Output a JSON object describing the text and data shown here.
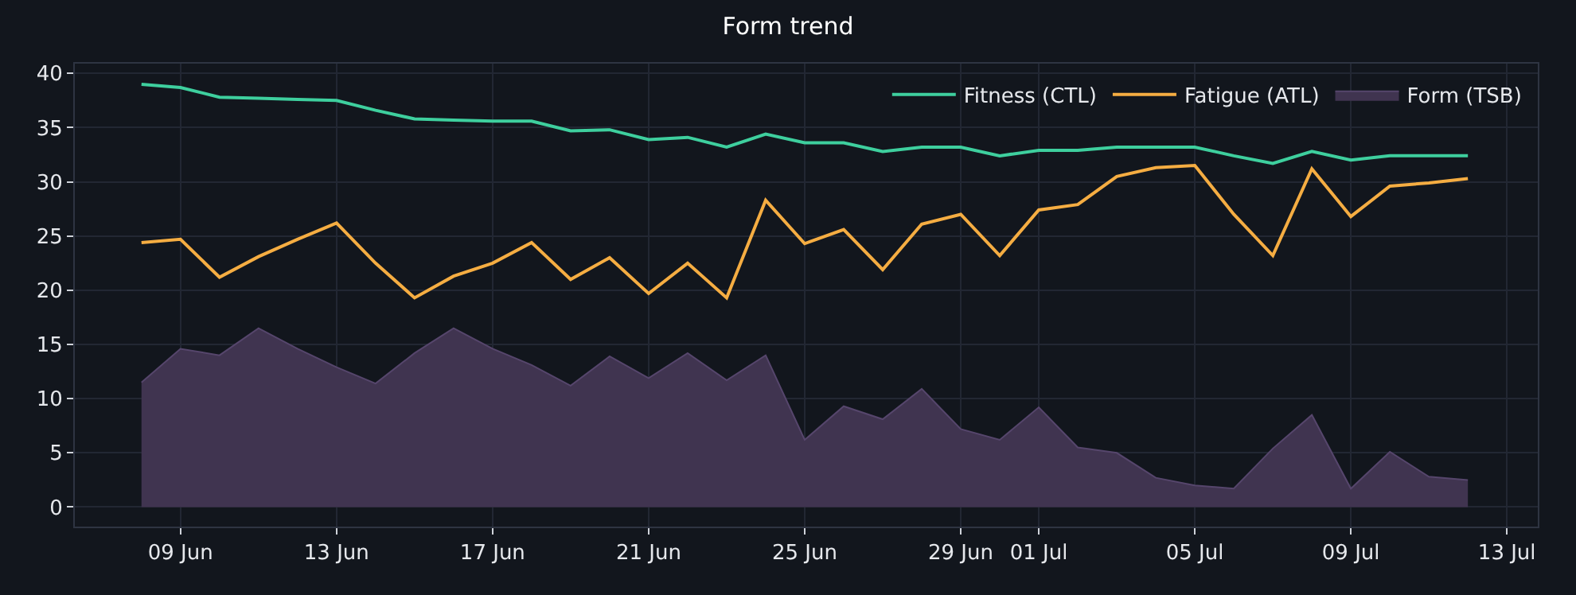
{
  "chart_data": {
    "type": "line",
    "title": "Form trend",
    "x": [
      "--06-08",
      "--06-09",
      "--06-10",
      "--06-11",
      "--06-12",
      "--06-13",
      "--06-14",
      "--06-15",
      "--06-16",
      "--06-17",
      "--06-18",
      "--06-19",
      "--06-20",
      "--06-21",
      "--06-22",
      "--06-23",
      "--06-24",
      "--06-25",
      "--06-26",
      "--06-27",
      "--06-28",
      "--06-29",
      "--06-30",
      "--07-01",
      "--07-02",
      "--07-03",
      "--07-04",
      "--07-05",
      "--07-06",
      "--07-07",
      "--07-08",
      "--07-09",
      "--07-10",
      "--07-11",
      "--07-12"
    ],
    "series": [
      {
        "name": "Fitness (CTL)",
        "color": "#3ecf9e",
        "values": [
          39.0,
          38.7,
          37.8,
          37.7,
          37.6,
          37.5,
          36.6,
          35.8,
          35.7,
          35.6,
          35.6,
          34.7,
          34.8,
          33.9,
          34.1,
          33.2,
          34.4,
          33.6,
          33.6,
          32.8,
          33.2,
          33.2,
          32.4,
          32.9,
          32.9,
          33.2,
          33.2,
          33.2,
          32.4,
          31.7,
          32.8,
          32.0,
          32.4,
          32.4,
          32.4
        ]
      },
      {
        "name": "Fatigue (ATL)",
        "color": "#f5ad42",
        "values": [
          24.4,
          24.7,
          21.2,
          23.1,
          24.7,
          26.2,
          22.5,
          19.3,
          21.3,
          22.5,
          24.4,
          21.0,
          23.0,
          19.7,
          22.5,
          19.3,
          28.3,
          24.3,
          25.6,
          21.9,
          26.1,
          27.0,
          23.2,
          27.4,
          27.9,
          30.5,
          31.3,
          31.5,
          27.0,
          23.2,
          31.2,
          26.8,
          29.6,
          29.9,
          30.3
        ]
      },
      {
        "name": "Form (TSB)",
        "type": "area",
        "color": "#403450",
        "values": [
          11.5,
          14.6,
          14.0,
          16.5,
          14.6,
          12.9,
          11.4,
          14.2,
          16.5,
          14.6,
          13.1,
          11.2,
          13.9,
          11.9,
          14.2,
          11.7,
          14.0,
          6.2,
          9.3,
          8.1,
          10.9,
          7.2,
          6.2,
          9.2,
          5.5,
          5.0,
          2.7,
          2.0,
          1.7,
          5.4,
          8.5,
          1.7,
          5.1,
          2.8,
          2.5
        ]
      }
    ],
    "xlim": [
      "--06-06T07:00",
      "--07-13T19:00"
    ],
    "xticks": [
      {
        "value": "--06-09",
        "label": "09 Jun"
      },
      {
        "value": "--06-13",
        "label": "13 Jun"
      },
      {
        "value": "--06-17",
        "label": "17 Jun"
      },
      {
        "value": "--06-21",
        "label": "21 Jun"
      },
      {
        "value": "--06-25",
        "label": "25 Jun"
      },
      {
        "value": "--06-29",
        "label": "29 Jun"
      },
      {
        "value": "--07-01",
        "label": "01 Jul"
      },
      {
        "value": "--07-05",
        "label": "05 Jul"
      },
      {
        "value": "--07-09",
        "label": "09 Jul"
      },
      {
        "value": "--07-13",
        "label": "13 Jul"
      }
    ],
    "ylim": [
      -1.8,
      40.9
    ],
    "yticks": [
      0,
      5,
      10,
      15,
      20,
      25,
      30,
      35,
      40
    ],
    "grid": true,
    "legend": "top right"
  }
}
